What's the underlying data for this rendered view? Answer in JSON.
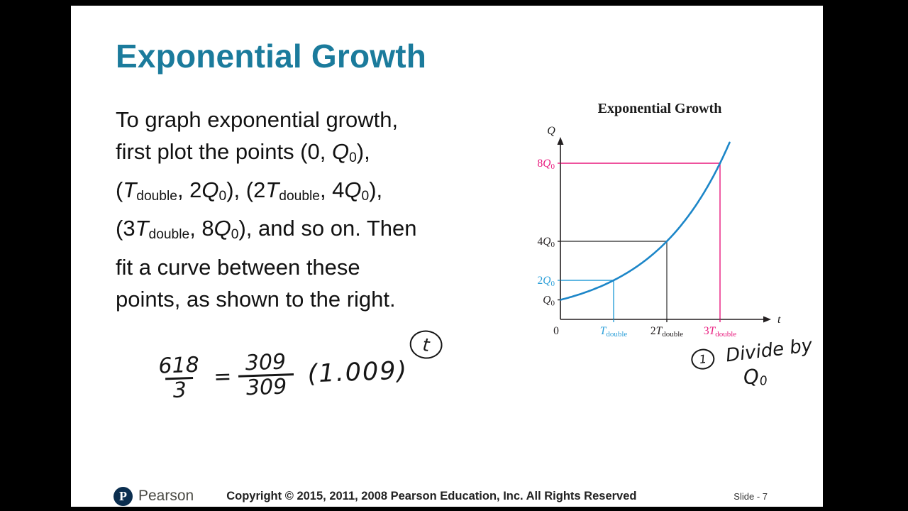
{
  "slide": {
    "title": "Exponential Growth",
    "body_segments": [
      {
        "t": "To graph exponential growth,"
      },
      {
        "br": 1
      },
      {
        "t": "first plot the points (0, "
      },
      {
        "t": "Q",
        "i": 1
      },
      {
        "t": "0",
        "sub": 1
      },
      {
        "t": "),"
      },
      {
        "br": 1
      },
      {
        "t": "("
      },
      {
        "t": "T",
        "i": 1
      },
      {
        "t": "double",
        "sub": 1
      },
      {
        "t": ", 2"
      },
      {
        "t": "Q",
        "i": 1
      },
      {
        "t": "0",
        "sub": 1
      },
      {
        "t": "), (2"
      },
      {
        "t": "T",
        "i": 1
      },
      {
        "t": "double",
        "sub": 1
      },
      {
        "t": ", 4"
      },
      {
        "t": "Q",
        "i": 1
      },
      {
        "t": "0",
        "sub": 1
      },
      {
        "t": "),"
      },
      {
        "br": 1
      },
      {
        "t": "(3"
      },
      {
        "t": "T",
        "i": 1
      },
      {
        "t": "double",
        "sub": 1
      },
      {
        "t": ", 8"
      },
      {
        "t": "Q",
        "i": 1
      },
      {
        "t": "0",
        "sub": 1
      },
      {
        "t": "), and so on. Then"
      },
      {
        "br": 1
      },
      {
        "t": "fit a curve between these"
      },
      {
        "br": 1
      },
      {
        "t": "points, as shown to the right."
      }
    ]
  },
  "chart_data": {
    "type": "line",
    "title": "Exponential Growth",
    "xlabel": "t",
    "ylabel": "Q",
    "curve_formula": "Q = Q0 * 2^(t/Tdouble)",
    "points": [
      [
        0,
        1
      ],
      [
        1,
        2
      ],
      [
        2,
        4
      ],
      [
        3,
        8
      ]
    ],
    "x_ticks": [
      {
        "t": 0,
        "label": "0",
        "color": "#231f20"
      },
      {
        "t": 1,
        "pre": "",
        "main": "T",
        "sub": "double",
        "color": "#2b9fd8"
      },
      {
        "t": 2,
        "pre": "2",
        "main": "T",
        "sub": "double",
        "color": "#231f20"
      },
      {
        "t": 3,
        "pre": "3",
        "main": "T",
        "sub": "double",
        "color": "#e8197d"
      }
    ],
    "y_ticks": [
      {
        "v": 1,
        "pre": "",
        "main": "Q",
        "sub": "0",
        "color": "#231f20"
      },
      {
        "v": 2,
        "pre": "2",
        "main": "Q",
        "sub": "0",
        "color": "#2b9fd8"
      },
      {
        "v": 4,
        "pre": "4",
        "main": "Q",
        "sub": "0",
        "color": "#231f20"
      },
      {
        "v": 8,
        "pre": "8",
        "main": "Q",
        "sub": "0",
        "color": "#e8197d"
      }
    ],
    "guides": [
      {
        "t": 1,
        "v": 2,
        "color": "#2b9fd8"
      },
      {
        "t": 2,
        "v": 4,
        "color": "#4a4a4a"
      },
      {
        "t": 3,
        "v": 8,
        "color": "#e8197d"
      }
    ],
    "colors": {
      "curve": "#1c86c8",
      "axis": "#231f20"
    }
  },
  "annotations": {
    "left_equation": {
      "num1": "618",
      "den1": "3",
      "equals": "=",
      "num2": "309",
      "den2": "309",
      "base": "(1.009)",
      "exponent": "t"
    },
    "right_note": {
      "step_mark": "1",
      "text": "Divide by",
      "q": "Q",
      "qsub": "0"
    }
  },
  "footer": {
    "brand": "Pearson",
    "logo_letter": "P",
    "copyright": "Copyright © 2015, 2011, 2008 Pearson Education, Inc. All Rights Reserved",
    "slide_number": "Slide - 7"
  }
}
